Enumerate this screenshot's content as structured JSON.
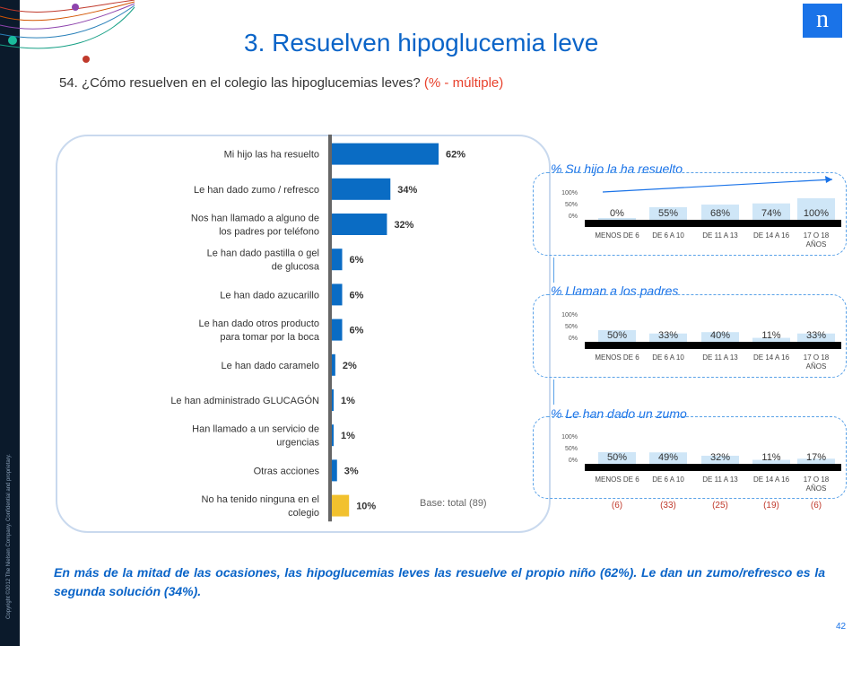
{
  "slide": {
    "title": "3. Resuelven hipoglucemia leve",
    "subtitle_main": "54. ¿Cómo resuelven en el colegio las hipoglucemias leves?",
    "subtitle_note": "(% - múltiple)",
    "copyright": "Copyright ©2012 The Nielsen Company. Confidential and proprietary.",
    "logo_letter": "n",
    "base_note": "Base: total (89)",
    "conclusion": "En más de la mitad de las ocasiones, las hipoglucemias leves las resuelve el propio niño (62%). Le dan un zumo/refresco es la segunda solución (34%).",
    "page_number": "42",
    "colors": {
      "primary_blue": "#0a64c8",
      "bar_blue": "#0a6cc4",
      "highlight_yellow": "#f2c12e",
      "accent_red": "#e8412c",
      "light_bar": "#cfe6f7"
    }
  },
  "chart_data": [
    {
      "type": "bar",
      "orientation": "horizontal",
      "categories": [
        "Mi hijo las ha resuelto",
        "Le han dado zumo / refresco",
        "Nos han llamado a alguno de los padres por teléfono",
        "Le han dado pastilla o gel de glucosa",
        "Le han dado azucarillo",
        "Le han dado otros producto para tomar por la boca",
        "Le han dado caramelo",
        "Le han administrado GLUCAGÓN",
        "Han llamado a un servicio de urgencias",
        "Otras acciones",
        "No ha tenido ninguna en el colegio"
      ],
      "values": [
        62,
        34,
        32,
        6,
        6,
        6,
        2,
        1,
        1,
        3,
        10
      ],
      "labels": [
        "62%",
        "34%",
        "32%",
        "6%",
        "6%",
        "6%",
        "2%",
        "1%",
        "1%",
        "3%",
        "10%"
      ],
      "highlight_index": 10
    },
    {
      "type": "bar",
      "title": "% Su hijo la ha resuelto",
      "categories": [
        "MENOS DE 6",
        "DE 6 A 10",
        "DE 11 A 13",
        "DE 14 A 16",
        "17 O 18 AÑOS"
      ],
      "values": [
        0,
        55,
        68,
        74,
        100
      ],
      "labels": [
        "0%",
        "55%",
        "68%",
        "74%",
        "100%"
      ],
      "yticks": [
        "100%",
        "50%",
        "0%"
      ],
      "ylim": [
        0,
        100
      ]
    },
    {
      "type": "bar",
      "title": "% Llaman a los padres",
      "categories": [
        "MENOS DE 6",
        "DE 6 A 10",
        "DE 11 A 13",
        "DE 14 A 16",
        "17 O 18 AÑOS"
      ],
      "values": [
        50,
        33,
        40,
        11,
        33
      ],
      "labels": [
        "50%",
        "33%",
        "40%",
        "11%",
        "33%"
      ],
      "yticks": [
        "100%",
        "50%",
        "0%"
      ],
      "ylim": [
        0,
        100
      ]
    },
    {
      "type": "bar",
      "title": "% Le han dado un zumo",
      "categories": [
        "MENOS DE 6",
        "DE 6 A 10",
        "DE 11 A 13",
        "DE 14 A 16",
        "17 O 18 AÑOS"
      ],
      "values": [
        50,
        49,
        32,
        11,
        17
      ],
      "labels": [
        "50%",
        "49%",
        "32%",
        "11%",
        "17%"
      ],
      "yticks": [
        "100%",
        "50%",
        "0%"
      ],
      "ylim": [
        0,
        100
      ],
      "base_counts": [
        "(6)",
        "(33)",
        "(25)",
        "(19)",
        "(6)"
      ]
    }
  ]
}
